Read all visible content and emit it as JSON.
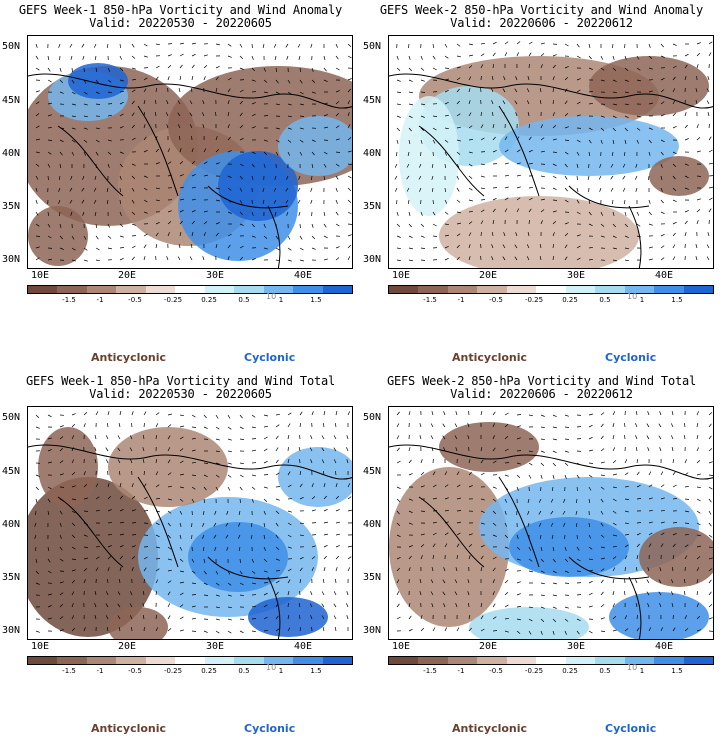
{
  "panels": [
    {
      "title": "GEFS Week-1 850-hPa Vorticity and Wind Anomaly",
      "valid": "Valid: 20220530 - 20220605"
    },
    {
      "title": "GEFS Week-2 850-hPa Vorticity and Wind Anomaly",
      "valid": "Valid: 20220606 - 20220612"
    },
    {
      "title": "GEFS Week-1 850-hPa Vorticity and Wind Total",
      "valid": "Valid: 20220530 - 20220605"
    },
    {
      "title": "GEFS Week-2 850-hPa Vorticity and Wind Total",
      "valid": "Valid: 20220606 - 20220612"
    }
  ],
  "lat_labels": [
    "50N",
    "45N",
    "40N",
    "35N",
    "30N"
  ],
  "lon_labels": [
    "10E",
    "20E",
    "30E",
    "40E"
  ],
  "colorbar": {
    "ticks": [
      "-1.5",
      "-1",
      "-0.5",
      "-0.25",
      "0.25",
      "0.5",
      "1",
      "1.5"
    ],
    "scale_label": "10",
    "colors": [
      "#6f4a3c",
      "#8d6556",
      "#ad8775",
      "#cfb1a1",
      "#eddcd3",
      "#ffffff",
      "#d3f2f7",
      "#a6dcef",
      "#74b6ef",
      "#3f8fe8",
      "#1e64d2"
    ]
  },
  "legend": {
    "anticyclonic": "Anticyclonic",
    "cyclonic": "Cyclonic"
  }
}
